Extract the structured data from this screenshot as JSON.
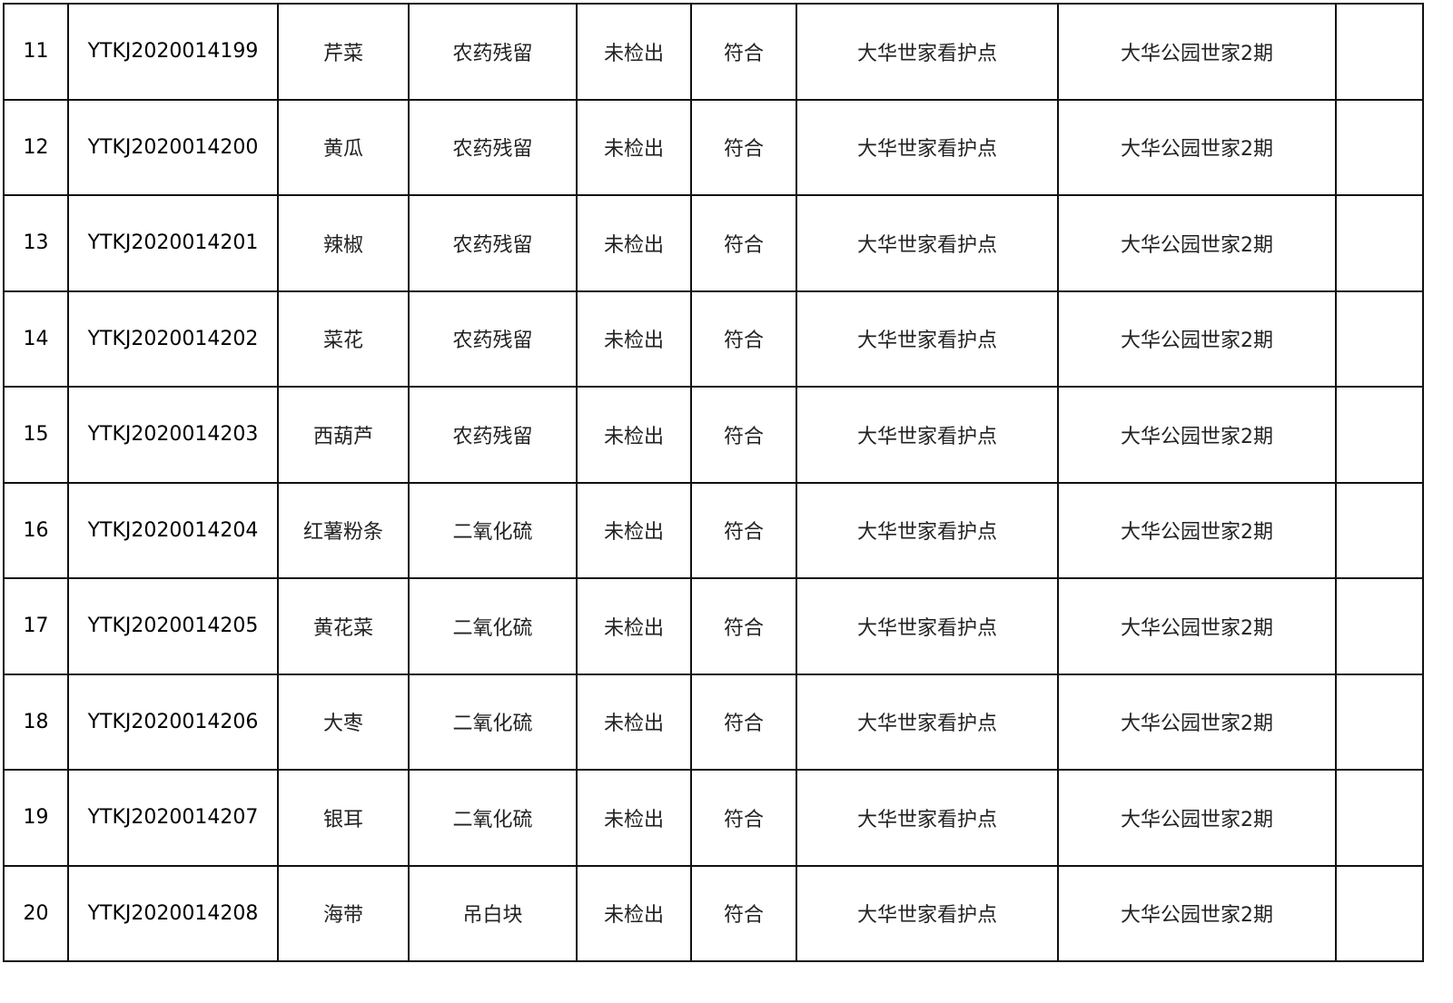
{
  "rows": [
    {
      "no": "11",
      "code": "YTKJ2020014199",
      "name": "芹菜",
      "item": "农药残留",
      "result": "未检出",
      "verdict": "符合",
      "point": "大华世家看护点",
      "location": "大华公园世家2期",
      "remark": ""
    },
    {
      "no": "12",
      "code": "YTKJ2020014200",
      "name": "黄瓜",
      "item": "农药残留",
      "result": "未检出",
      "verdict": "符合",
      "point": "大华世家看护点",
      "location": "大华公园世家2期",
      "remark": ""
    },
    {
      "no": "13",
      "code": "YTKJ2020014201",
      "name": "辣椒",
      "item": "农药残留",
      "result": "未检出",
      "verdict": "符合",
      "point": "大华世家看护点",
      "location": "大华公园世家2期",
      "remark": ""
    },
    {
      "no": "14",
      "code": "YTKJ2020014202",
      "name": "菜花",
      "item": "农药残留",
      "result": "未检出",
      "verdict": "符合",
      "point": "大华世家看护点",
      "location": "大华公园世家2期",
      "remark": ""
    },
    {
      "no": "15",
      "code": "YTKJ2020014203",
      "name": "西葫芦",
      "item": "农药残留",
      "result": "未检出",
      "verdict": "符合",
      "point": "大华世家看护点",
      "location": "大华公园世家2期",
      "remark": ""
    },
    {
      "no": "16",
      "code": "YTKJ2020014204",
      "name": "红薯粉条",
      "item": "二氧化硫",
      "result": "未检出",
      "verdict": "符合",
      "point": "大华世家看护点",
      "location": "大华公园世家2期",
      "remark": ""
    },
    {
      "no": "17",
      "code": "YTKJ2020014205",
      "name": "黄花菜",
      "item": "二氧化硫",
      "result": "未检出",
      "verdict": "符合",
      "point": "大华世家看护点",
      "location": "大华公园世家2期",
      "remark": ""
    },
    {
      "no": "18",
      "code": "YTKJ2020014206",
      "name": "大枣",
      "item": "二氧化硫",
      "result": "未检出",
      "verdict": "符合",
      "point": "大华世家看护点",
      "location": "大华公园世家2期",
      "remark": ""
    },
    {
      "no": "19",
      "code": "YTKJ2020014207",
      "name": "银耳",
      "item": "二氧化硫",
      "result": "未检出",
      "verdict": "符合",
      "point": "大华世家看护点",
      "location": "大华公园世家2期",
      "remark": ""
    },
    {
      "no": "20",
      "code": "YTKJ2020014208",
      "name": "海带",
      "item": "吊白块",
      "result": "未检出",
      "verdict": "符合",
      "point": "大华世家看护点",
      "location": "大华公园世家2期",
      "remark": ""
    }
  ]
}
